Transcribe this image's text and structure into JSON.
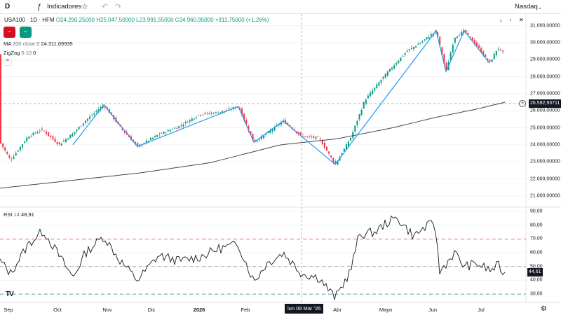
{
  "toolbar": {
    "timeframe": "D",
    "indicators_icon": "indicators-icon",
    "indicators_label": "Indicadores",
    "favorite_icon": "star-icon",
    "undo_icon": "undo-icon",
    "redo_icon": "redo-icon",
    "symbol_name": "Nasdaq",
    "symbol_dropdown_icon": "chevron-down-icon"
  },
  "legend": {
    "symbol": "USA100 · 1D · HFM",
    "open": "O24.290,25000",
    "high": "H25.047,50000",
    "low": "L23.991,55000",
    "close": "C24.960,95000",
    "change": "+311,75000 (+1,26%)"
  },
  "trade": {
    "sell_label": "...",
    "buy_label": "..."
  },
  "indicators": {
    "ma": {
      "name": "MA",
      "params": "200 close 0",
      "value": "24.311,69935"
    },
    "zigzag": {
      "name": "ZigZag",
      "params": "5 10",
      "value": "0"
    }
  },
  "rsi": {
    "name": "RSI",
    "params": "14",
    "value": "48,91",
    "tag": "44,61"
  },
  "price_axis": {
    "labels": [
      "31.000,00000",
      "30.000,00000",
      "29.000,00000",
      "28.000,00000",
      "27.000,00000",
      "26.000,00000",
      "25.000,00000",
      "24.000,00000",
      "23.000,00000",
      "22.000,00000",
      "21.000,00000"
    ],
    "values": [
      31000,
      30000,
      29000,
      28000,
      27000,
      26000,
      25000,
      24000,
      23000,
      22000,
      21000
    ],
    "crosshair_price": "26.592,93711"
  },
  "rsi_axis": {
    "labels": [
      "90,00",
      "80,00",
      "70,00",
      "60,00",
      "50,00",
      "40,00",
      "30,00"
    ],
    "values": [
      90,
      80,
      70,
      60,
      50,
      40,
      30
    ]
  },
  "time_axis": {
    "labels": [
      "Sep",
      "Oct",
      "Nov",
      "Dic",
      "2026",
      "Feb",
      "Abr",
      "Mayo",
      "Jun",
      "Jul"
    ],
    "crosshair_date": "lun 09 Mar '26"
  },
  "colors": {
    "up": "#089981",
    "down": "#f23645",
    "zigzag": "#2196f3",
    "ma": "#434651",
    "overbought": "#f23645",
    "oversold": "#089981"
  },
  "chart_data": {
    "type": "candlestick",
    "price_ylim": [
      20500,
      31600
    ],
    "rsi_ylim": [
      25,
      92
    ],
    "rsi_levels": [
      70,
      50,
      30
    ],
    "keypoints": [
      [
        0,
        24150
      ],
      [
        15,
        23100
      ],
      [
        40,
        24500
      ],
      [
        60,
        24900
      ],
      [
        84,
        24000
      ],
      [
        105,
        24700
      ],
      [
        120,
        25350
      ],
      [
        148,
        26350
      ],
      [
        170,
        25100
      ],
      [
        196,
        23900
      ],
      [
        226,
        24600
      ],
      [
        256,
        25100
      ],
      [
        285,
        25800
      ],
      [
        312,
        25900
      ],
      [
        340,
        26250
      ],
      [
        362,
        24150
      ],
      [
        380,
        24650
      ],
      [
        404,
        25400
      ],
      [
        430,
        24500
      ],
      [
        455,
        24400
      ],
      [
        478,
        22850
      ],
      [
        500,
        24400
      ],
      [
        520,
        26600
      ],
      [
        545,
        27900
      ],
      [
        560,
        28600
      ],
      [
        580,
        29500
      ],
      [
        600,
        30000
      ],
      [
        622,
        30700
      ],
      [
        636,
        28300
      ],
      [
        648,
        30300
      ],
      [
        662,
        30700
      ],
      [
        684,
        29600
      ],
      [
        698,
        28800
      ],
      [
        710,
        29700
      ],
      [
        720,
        29300
      ]
    ],
    "zigzag": [
      [
        104,
        24000
      ],
      [
        148,
        26350
      ],
      [
        196,
        23900
      ],
      [
        340,
        26250
      ],
      [
        362,
        24150
      ],
      [
        404,
        25400
      ],
      [
        430,
        24500
      ],
      [
        478,
        22850
      ],
      [
        622,
        30700
      ],
      [
        636,
        28300
      ],
      [
        662,
        30700
      ],
      [
        698,
        28800
      ]
    ],
    "ma": [
      [
        0,
        21450
      ],
      [
        100,
        21900
      ],
      [
        200,
        22350
      ],
      [
        300,
        22950
      ],
      [
        400,
        24000
      ],
      [
        480,
        24350
      ],
      [
        560,
        25000
      ],
      [
        620,
        25600
      ],
      [
        680,
        26100
      ],
      [
        720,
        26500
      ]
    ],
    "rsi": [
      [
        0,
        54
      ],
      [
        15,
        45
      ],
      [
        40,
        66
      ],
      [
        62,
        76
      ],
      [
        84,
        58
      ],
      [
        104,
        42
      ],
      [
        122,
        60
      ],
      [
        148,
        72
      ],
      [
        170,
        55
      ],
      [
        196,
        40
      ],
      [
        226,
        58
      ],
      [
        256,
        54
      ],
      [
        285,
        57
      ],
      [
        312,
        63
      ],
      [
        340,
        66
      ],
      [
        362,
        39
      ],
      [
        380,
        52
      ],
      [
        404,
        60
      ],
      [
        430,
        45
      ],
      [
        455,
        42
      ],
      [
        478,
        27
      ],
      [
        500,
        47
      ],
      [
        512,
        73
      ],
      [
        535,
        75
      ],
      [
        552,
        82
      ],
      [
        567,
        85
      ],
      [
        590,
        72
      ],
      [
        605,
        78
      ],
      [
        620,
        82
      ],
      [
        627,
        46
      ],
      [
        648,
        60
      ],
      [
        662,
        50
      ],
      [
        680,
        52
      ],
      [
        700,
        47
      ],
      [
        710,
        51
      ],
      [
        720,
        44
      ]
    ]
  }
}
